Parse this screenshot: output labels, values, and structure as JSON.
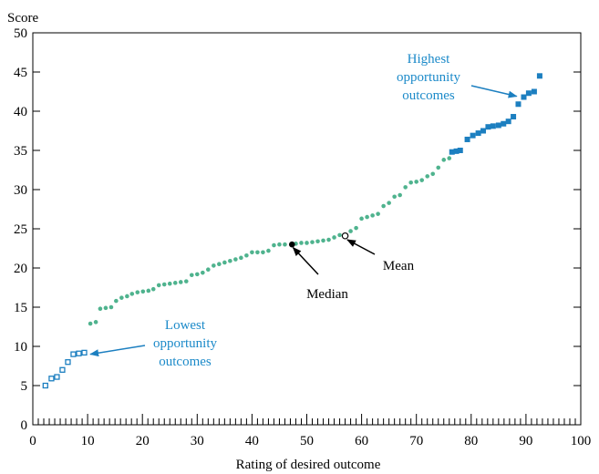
{
  "chart_data": {
    "type": "scatter",
    "xlabel": "Rating of desired outcome",
    "ylabel": "Score",
    "xlim": [
      0,
      100
    ],
    "ylim": [
      0,
      50
    ],
    "xticks": [
      0,
      10,
      20,
      30,
      40,
      50,
      60,
      70,
      80,
      90,
      100
    ],
    "yticks": [
      0,
      5,
      10,
      15,
      20,
      25,
      30,
      35,
      40,
      45,
      50
    ],
    "minor_x_step": 1,
    "grid": false,
    "colors": {
      "green": "#4fb38e",
      "blue": "#1c7fc0",
      "annotation": "#1c8ac9"
    },
    "series": [
      {
        "key": "lowest",
        "marker": "hollow-square",
        "points": [
          [
            2.3,
            5.0
          ],
          [
            3.4,
            5.9
          ],
          [
            4.4,
            6.1
          ],
          [
            5.4,
            7.0
          ],
          [
            6.4,
            8.0
          ],
          [
            7.4,
            9.0
          ],
          [
            8.4,
            9.1
          ],
          [
            9.4,
            9.2
          ]
        ]
      },
      {
        "key": "middle",
        "marker": "dot",
        "points": [
          [
            10.5,
            12.9
          ],
          [
            11.5,
            13.1
          ],
          [
            12.3,
            14.8
          ],
          [
            13.3,
            14.9
          ],
          [
            14.3,
            15.0
          ],
          [
            15.2,
            15.8
          ],
          [
            16.2,
            16.2
          ],
          [
            17.2,
            16.4
          ],
          [
            18.1,
            16.7
          ],
          [
            19.1,
            16.9
          ],
          [
            20.1,
            17.0
          ],
          [
            21.1,
            17.1
          ],
          [
            22.0,
            17.3
          ],
          [
            23.0,
            17.8
          ],
          [
            24.0,
            17.9
          ],
          [
            25.0,
            18.0
          ],
          [
            26.0,
            18.1
          ],
          [
            27.0,
            18.2
          ],
          [
            28.0,
            18.3
          ],
          [
            29.0,
            19.1
          ],
          [
            30.0,
            19.2
          ],
          [
            31.0,
            19.4
          ],
          [
            32.0,
            19.8
          ],
          [
            33.0,
            20.3
          ],
          [
            34.0,
            20.5
          ],
          [
            35.0,
            20.7
          ],
          [
            36.0,
            20.9
          ],
          [
            37.0,
            21.1
          ],
          [
            38.0,
            21.3
          ],
          [
            39.0,
            21.6
          ],
          [
            40.0,
            22.0
          ],
          [
            41.0,
            22.0
          ],
          [
            42.0,
            22.0
          ],
          [
            43.0,
            22.2
          ],
          [
            44.0,
            22.9
          ],
          [
            45.0,
            23.0
          ],
          [
            46.0,
            23.0
          ],
          [
            48.0,
            23.1
          ],
          [
            49.0,
            23.2
          ],
          [
            50.0,
            23.2
          ],
          [
            51.0,
            23.3
          ],
          [
            52.0,
            23.4
          ],
          [
            53.0,
            23.5
          ],
          [
            54.0,
            23.6
          ],
          [
            55.0,
            23.9
          ],
          [
            56.0,
            24.2
          ],
          [
            58.0,
            24.7
          ],
          [
            59.0,
            25.1
          ],
          [
            60.0,
            26.3
          ],
          [
            61.0,
            26.5
          ],
          [
            62.0,
            26.7
          ],
          [
            63.0,
            26.9
          ],
          [
            64.0,
            27.9
          ],
          [
            65.0,
            28.3
          ],
          [
            66.0,
            29.1
          ],
          [
            67.0,
            29.3
          ],
          [
            68.0,
            30.3
          ],
          [
            69.0,
            30.9
          ],
          [
            70.0,
            31.0
          ],
          [
            71.0,
            31.2
          ],
          [
            72.0,
            31.7
          ],
          [
            73.0,
            32.0
          ],
          [
            74.0,
            32.8
          ],
          [
            75.0,
            33.8
          ],
          [
            76.0,
            34.0
          ]
        ]
      },
      {
        "key": "highest",
        "marker": "filled-square",
        "points": [
          [
            76.5,
            34.8
          ],
          [
            77.3,
            34.9
          ],
          [
            78.0,
            35.0
          ],
          [
            79.3,
            36.4
          ],
          [
            80.3,
            36.9
          ],
          [
            81.3,
            37.2
          ],
          [
            82.2,
            37.5
          ],
          [
            83.1,
            38.0
          ],
          [
            84.0,
            38.1
          ],
          [
            85.0,
            38.2
          ],
          [
            85.9,
            38.4
          ],
          [
            86.8,
            38.7
          ],
          [
            87.7,
            39.3
          ],
          [
            88.6,
            40.9
          ],
          [
            89.6,
            41.8
          ],
          [
            90.5,
            42.3
          ],
          [
            91.5,
            42.5
          ],
          [
            92.5,
            44.5
          ]
        ]
      },
      {
        "key": "stats",
        "marker": "stat",
        "points": [
          [
            47.3,
            23.0
          ],
          [
            57.0,
            24.1
          ]
        ]
      }
    ],
    "annotations": [
      {
        "key": "highest",
        "lines": [
          "Highest",
          "opportunity",
          "outcomes"
        ],
        "color": "blue",
        "arrow_to": [
          88.3,
          41.9
        ]
      },
      {
        "key": "lowest",
        "lines": [
          "Lowest",
          "opportunity",
          "outcomes"
        ],
        "color": "blue",
        "arrow_to": [
          10.5,
          9.0
        ]
      },
      {
        "key": "median",
        "lines": [
          "Median"
        ],
        "color": "black",
        "arrow_to": [
          47.5,
          22.6
        ]
      },
      {
        "key": "mean",
        "lines": [
          "Mean"
        ],
        "color": "black",
        "arrow_to": [
          57.4,
          23.6
        ]
      }
    ]
  }
}
